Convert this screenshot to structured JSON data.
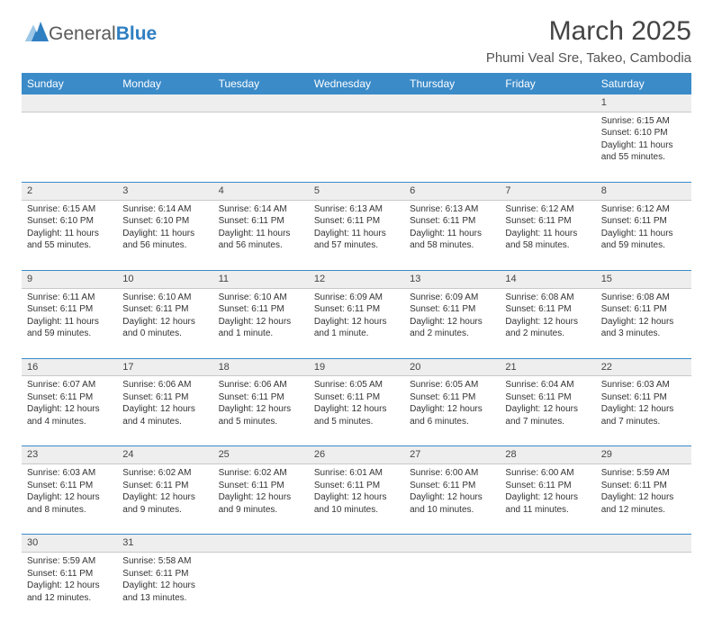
{
  "logo": {
    "word1": "General",
    "word2": "Blue"
  },
  "title": "March 2025",
  "location": "Phumi Veal Sre, Takeo, Cambodia",
  "colors": {
    "header_bg": "#3b8bc9",
    "header_text": "#ffffff",
    "daynum_bg": "#eeeeee",
    "row_border": "#3b8bc9",
    "logo_gray": "#5a5a5a",
    "logo_blue": "#2f7fc1"
  },
  "dayNames": [
    "Sunday",
    "Monday",
    "Tuesday",
    "Wednesday",
    "Thursday",
    "Friday",
    "Saturday"
  ],
  "weeks": [
    {
      "days": [
        {
          "n": "",
          "lines": [
            "",
            "",
            "",
            ""
          ]
        },
        {
          "n": "",
          "lines": [
            "",
            "",
            "",
            ""
          ]
        },
        {
          "n": "",
          "lines": [
            "",
            "",
            "",
            ""
          ]
        },
        {
          "n": "",
          "lines": [
            "",
            "",
            "",
            ""
          ]
        },
        {
          "n": "",
          "lines": [
            "",
            "",
            "",
            ""
          ]
        },
        {
          "n": "",
          "lines": [
            "",
            "",
            "",
            ""
          ]
        },
        {
          "n": "1",
          "lines": [
            "Sunrise: 6:15 AM",
            "Sunset: 6:10 PM",
            "Daylight: 11 hours",
            "and 55 minutes."
          ]
        }
      ]
    },
    {
      "days": [
        {
          "n": "2",
          "lines": [
            "Sunrise: 6:15 AM",
            "Sunset: 6:10 PM",
            "Daylight: 11 hours",
            "and 55 minutes."
          ]
        },
        {
          "n": "3",
          "lines": [
            "Sunrise: 6:14 AM",
            "Sunset: 6:10 PM",
            "Daylight: 11 hours",
            "and 56 minutes."
          ]
        },
        {
          "n": "4",
          "lines": [
            "Sunrise: 6:14 AM",
            "Sunset: 6:11 PM",
            "Daylight: 11 hours",
            "and 56 minutes."
          ]
        },
        {
          "n": "5",
          "lines": [
            "Sunrise: 6:13 AM",
            "Sunset: 6:11 PM",
            "Daylight: 11 hours",
            "and 57 minutes."
          ]
        },
        {
          "n": "6",
          "lines": [
            "Sunrise: 6:13 AM",
            "Sunset: 6:11 PM",
            "Daylight: 11 hours",
            "and 58 minutes."
          ]
        },
        {
          "n": "7",
          "lines": [
            "Sunrise: 6:12 AM",
            "Sunset: 6:11 PM",
            "Daylight: 11 hours",
            "and 58 minutes."
          ]
        },
        {
          "n": "8",
          "lines": [
            "Sunrise: 6:12 AM",
            "Sunset: 6:11 PM",
            "Daylight: 11 hours",
            "and 59 minutes."
          ]
        }
      ]
    },
    {
      "days": [
        {
          "n": "9",
          "lines": [
            "Sunrise: 6:11 AM",
            "Sunset: 6:11 PM",
            "Daylight: 11 hours",
            "and 59 minutes."
          ]
        },
        {
          "n": "10",
          "lines": [
            "Sunrise: 6:10 AM",
            "Sunset: 6:11 PM",
            "Daylight: 12 hours",
            "and 0 minutes."
          ]
        },
        {
          "n": "11",
          "lines": [
            "Sunrise: 6:10 AM",
            "Sunset: 6:11 PM",
            "Daylight: 12 hours",
            "and 1 minute."
          ]
        },
        {
          "n": "12",
          "lines": [
            "Sunrise: 6:09 AM",
            "Sunset: 6:11 PM",
            "Daylight: 12 hours",
            "and 1 minute."
          ]
        },
        {
          "n": "13",
          "lines": [
            "Sunrise: 6:09 AM",
            "Sunset: 6:11 PM",
            "Daylight: 12 hours",
            "and 2 minutes."
          ]
        },
        {
          "n": "14",
          "lines": [
            "Sunrise: 6:08 AM",
            "Sunset: 6:11 PM",
            "Daylight: 12 hours",
            "and 2 minutes."
          ]
        },
        {
          "n": "15",
          "lines": [
            "Sunrise: 6:08 AM",
            "Sunset: 6:11 PM",
            "Daylight: 12 hours",
            "and 3 minutes."
          ]
        }
      ]
    },
    {
      "days": [
        {
          "n": "16",
          "lines": [
            "Sunrise: 6:07 AM",
            "Sunset: 6:11 PM",
            "Daylight: 12 hours",
            "and 4 minutes."
          ]
        },
        {
          "n": "17",
          "lines": [
            "Sunrise: 6:06 AM",
            "Sunset: 6:11 PM",
            "Daylight: 12 hours",
            "and 4 minutes."
          ]
        },
        {
          "n": "18",
          "lines": [
            "Sunrise: 6:06 AM",
            "Sunset: 6:11 PM",
            "Daylight: 12 hours",
            "and 5 minutes."
          ]
        },
        {
          "n": "19",
          "lines": [
            "Sunrise: 6:05 AM",
            "Sunset: 6:11 PM",
            "Daylight: 12 hours",
            "and 5 minutes."
          ]
        },
        {
          "n": "20",
          "lines": [
            "Sunrise: 6:05 AM",
            "Sunset: 6:11 PM",
            "Daylight: 12 hours",
            "and 6 minutes."
          ]
        },
        {
          "n": "21",
          "lines": [
            "Sunrise: 6:04 AM",
            "Sunset: 6:11 PM",
            "Daylight: 12 hours",
            "and 7 minutes."
          ]
        },
        {
          "n": "22",
          "lines": [
            "Sunrise: 6:03 AM",
            "Sunset: 6:11 PM",
            "Daylight: 12 hours",
            "and 7 minutes."
          ]
        }
      ]
    },
    {
      "days": [
        {
          "n": "23",
          "lines": [
            "Sunrise: 6:03 AM",
            "Sunset: 6:11 PM",
            "Daylight: 12 hours",
            "and 8 minutes."
          ]
        },
        {
          "n": "24",
          "lines": [
            "Sunrise: 6:02 AM",
            "Sunset: 6:11 PM",
            "Daylight: 12 hours",
            "and 9 minutes."
          ]
        },
        {
          "n": "25",
          "lines": [
            "Sunrise: 6:02 AM",
            "Sunset: 6:11 PM",
            "Daylight: 12 hours",
            "and 9 minutes."
          ]
        },
        {
          "n": "26",
          "lines": [
            "Sunrise: 6:01 AM",
            "Sunset: 6:11 PM",
            "Daylight: 12 hours",
            "and 10 minutes."
          ]
        },
        {
          "n": "27",
          "lines": [
            "Sunrise: 6:00 AM",
            "Sunset: 6:11 PM",
            "Daylight: 12 hours",
            "and 10 minutes."
          ]
        },
        {
          "n": "28",
          "lines": [
            "Sunrise: 6:00 AM",
            "Sunset: 6:11 PM",
            "Daylight: 12 hours",
            "and 11 minutes."
          ]
        },
        {
          "n": "29",
          "lines": [
            "Sunrise: 5:59 AM",
            "Sunset: 6:11 PM",
            "Daylight: 12 hours",
            "and 12 minutes."
          ]
        }
      ]
    },
    {
      "days": [
        {
          "n": "30",
          "lines": [
            "Sunrise: 5:59 AM",
            "Sunset: 6:11 PM",
            "Daylight: 12 hours",
            "and 12 minutes."
          ]
        },
        {
          "n": "31",
          "lines": [
            "Sunrise: 5:58 AM",
            "Sunset: 6:11 PM",
            "Daylight: 12 hours",
            "and 13 minutes."
          ]
        },
        {
          "n": "",
          "lines": [
            "",
            "",
            "",
            ""
          ]
        },
        {
          "n": "",
          "lines": [
            "",
            "",
            "",
            ""
          ]
        },
        {
          "n": "",
          "lines": [
            "",
            "",
            "",
            ""
          ]
        },
        {
          "n": "",
          "lines": [
            "",
            "",
            "",
            ""
          ]
        },
        {
          "n": "",
          "lines": [
            "",
            "",
            "",
            ""
          ]
        }
      ]
    }
  ]
}
